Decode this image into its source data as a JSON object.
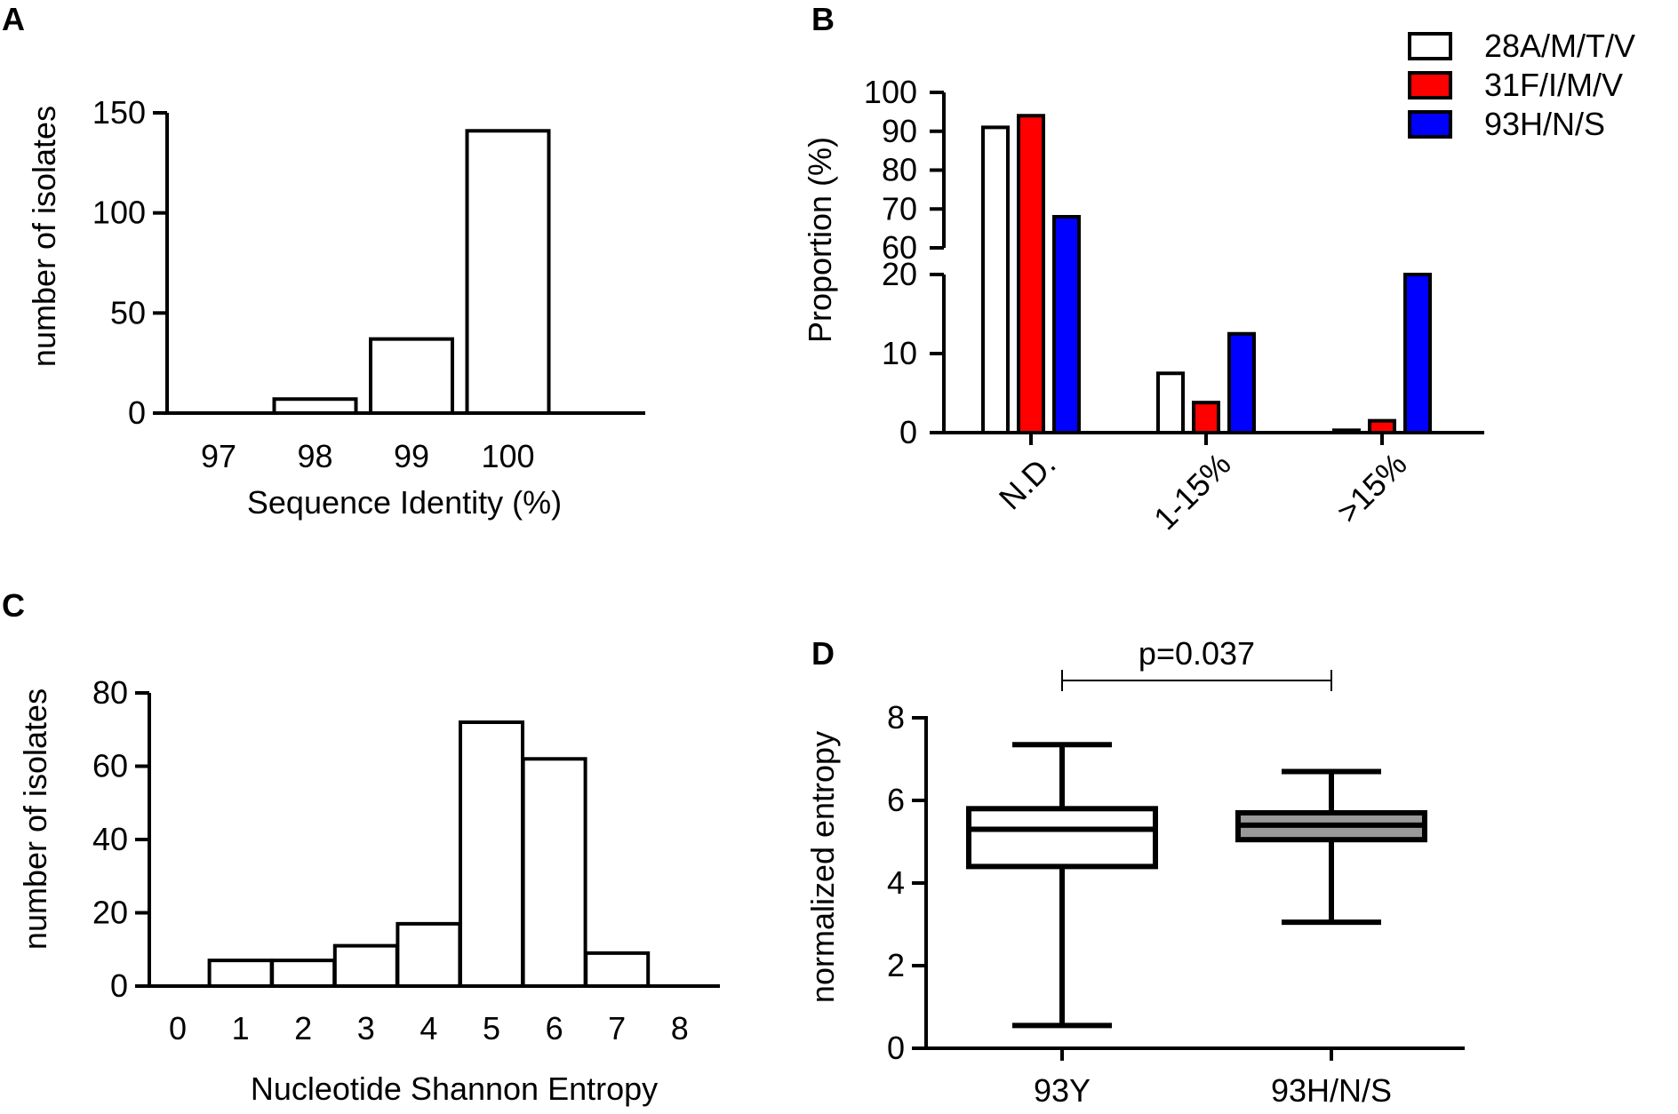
{
  "panels": {
    "a": {
      "letter": "A"
    },
    "b": {
      "letter": "B"
    },
    "c": {
      "letter": "C"
    },
    "d": {
      "letter": "D"
    }
  },
  "chart_data": [
    {
      "id": "a",
      "type": "bar",
      "subtype": "histogram",
      "xlabel": "Sequence Identity (%)",
      "ylabel": "number of isolates",
      "categories": [
        "97",
        "98",
        "99",
        "100"
      ],
      "values": [
        0,
        7,
        37,
        141
      ],
      "ylim": [
        0,
        150
      ],
      "yticks": [
        0,
        50,
        100,
        150
      ],
      "bar_color": "#ffffff",
      "grid": false
    },
    {
      "id": "b",
      "type": "bar",
      "subtype": "grouped, broken y-axis",
      "xlabel": "",
      "ylabel": "Proportion (%)",
      "categories": [
        "N.D.",
        "1-15%",
        ">15%"
      ],
      "series": [
        {
          "name": "28A/M/T/V",
          "color": "#ffffff",
          "values": [
            91,
            7.5,
            0.3
          ]
        },
        {
          "name": "31F/I/M/V",
          "color": "#ff0000",
          "values": [
            94,
            3.8,
            1.5
          ]
        },
        {
          "name": "93H/N/S",
          "color": "#0000ff",
          "values": [
            68,
            12.5,
            20
          ]
        }
      ],
      "axis_segments": [
        {
          "range": [
            0,
            20
          ],
          "ticks": [
            0,
            10,
            20
          ]
        },
        {
          "range": [
            60,
            100
          ],
          "ticks": [
            60,
            70,
            80,
            90,
            100
          ]
        }
      ],
      "legend": "top-right",
      "grid": false
    },
    {
      "id": "c",
      "type": "bar",
      "subtype": "histogram",
      "xlabel": "Nucleotide Shannon Entropy",
      "ylabel": "number of isolates",
      "categories": [
        "0",
        "1",
        "2",
        "3",
        "4",
        "5",
        "6",
        "7",
        "8"
      ],
      "values": [
        0,
        7,
        7,
        11,
        17,
        72,
        62,
        9,
        0
      ],
      "ylim": [
        0,
        80
      ],
      "yticks": [
        0,
        20,
        40,
        60,
        80
      ],
      "bar_color": "#ffffff",
      "grid": false
    },
    {
      "id": "d",
      "type": "boxplot",
      "xlabel": "",
      "ylabel": "normalized entropy",
      "categories": [
        "93Y",
        "93H/N/S"
      ],
      "boxes": [
        {
          "name": "93Y",
          "min": 0.55,
          "q1": 4.4,
          "median": 5.3,
          "q3": 5.8,
          "max": 7.35,
          "fill": "#ffffff"
        },
        {
          "name": "93H/N/S",
          "min": 3.05,
          "q1": 5.05,
          "median": 5.4,
          "q3": 5.7,
          "max": 6.7,
          "fill": "#999999"
        }
      ],
      "ylim": [
        0,
        8
      ],
      "yticks": [
        0,
        2,
        4,
        6,
        8
      ],
      "annotation": {
        "text": "p=0.037",
        "between": [
          "93Y",
          "93H/N/S"
        ]
      },
      "grid": false
    }
  ]
}
